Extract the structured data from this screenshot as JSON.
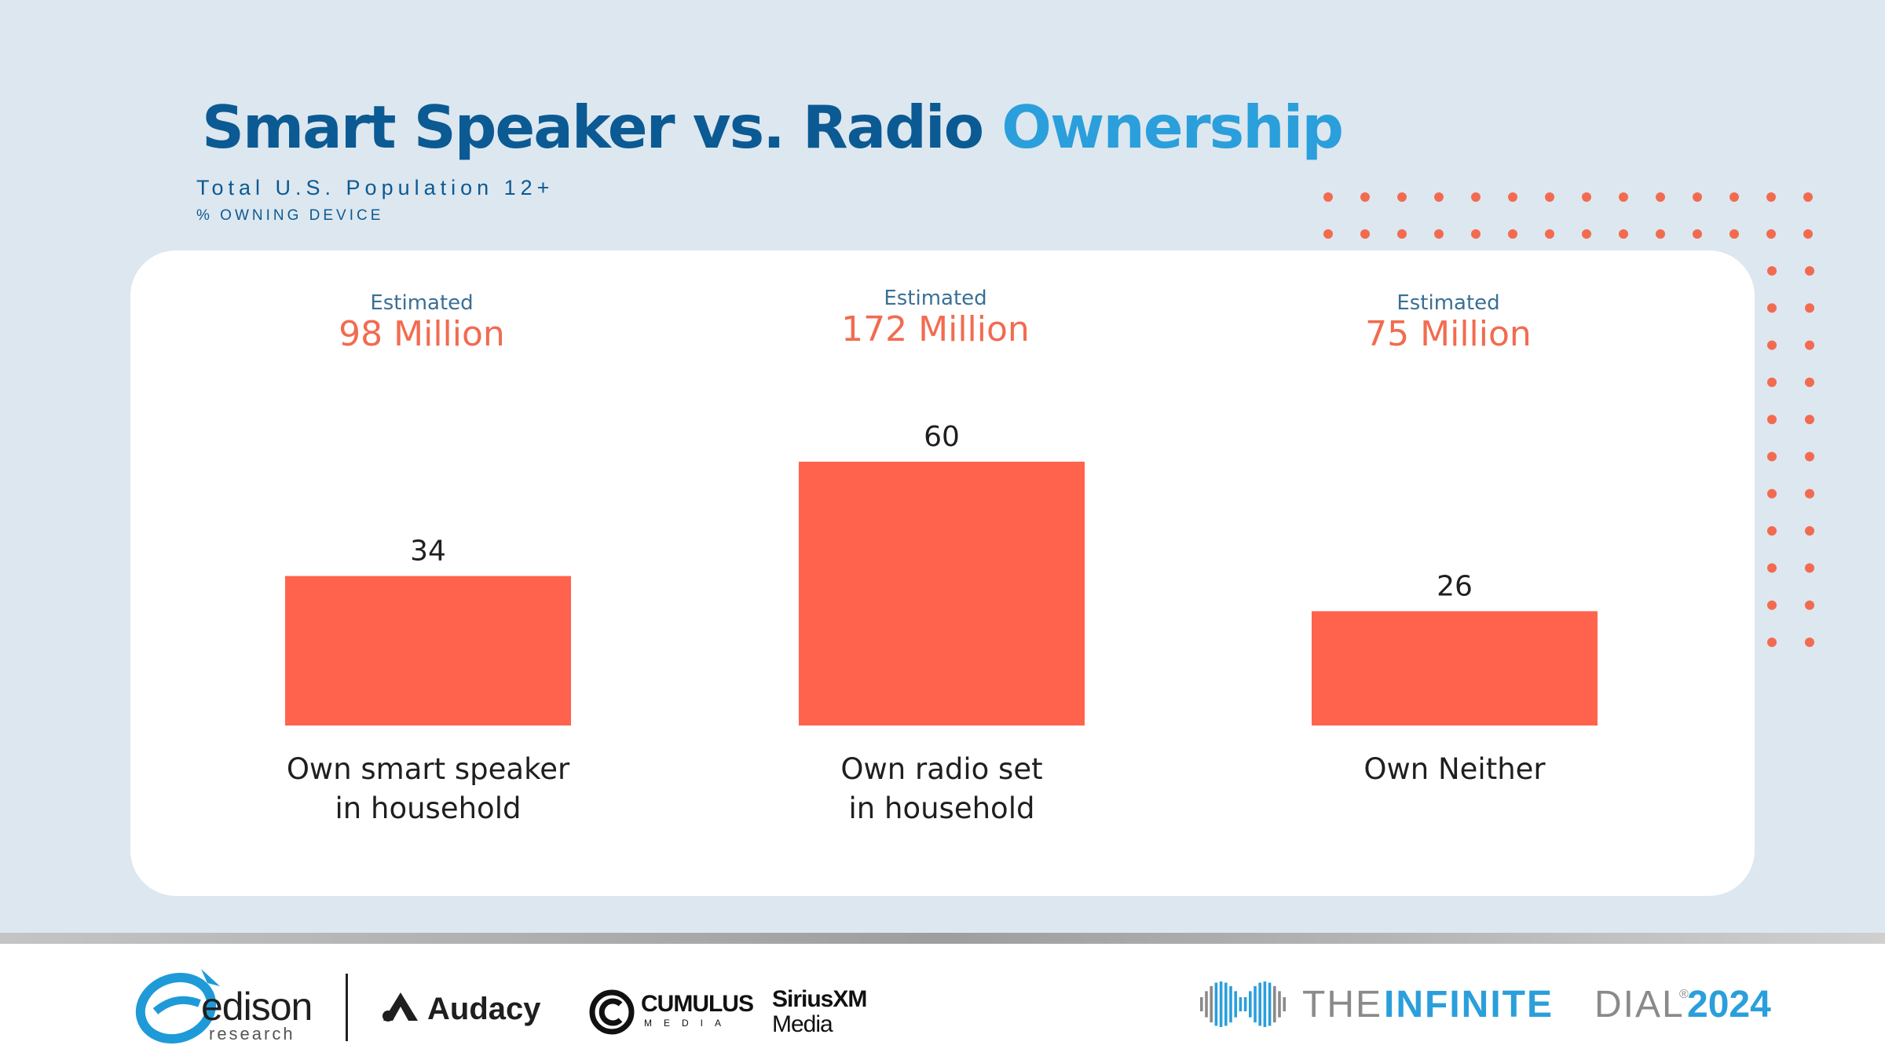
{
  "title_main": "Smart Speaker vs. Radio",
  "title_accent": "Ownership",
  "subtitle": "Total U.S. Population 12+",
  "note": "% OWNING DEVICE",
  "colors": {
    "bar": "#ff634d",
    "estimate": "#f26b50",
    "label_blue": "#3a6f95",
    "title_blue": "#0b5a93",
    "accent_blue": "#2a9fdb",
    "dots": "#f26b50"
  },
  "chart_data": {
    "type": "bar",
    "categories": [
      "Own smart speaker in household",
      "Own radio set in household",
      "Own Neither"
    ],
    "category_lines": [
      [
        "Own smart speaker",
        "in household"
      ],
      [
        "Own radio set",
        "in household"
      ],
      [
        "Own Neither"
      ]
    ],
    "values": [
      34,
      60,
      26
    ],
    "estimate_prefix": "Estimated",
    "estimates": [
      "98 Million",
      "172 Million",
      "75 Million"
    ],
    "ylim": [
      0,
      100
    ],
    "title": "Smart Speaker vs. Radio Ownership",
    "xlabel": "",
    "ylabel": ""
  },
  "footer": {
    "edison": "edison",
    "edison_sub": "research",
    "audacy": "Audacy",
    "cumulus": "CUMULUS",
    "cumulus_sub": "MEDIA",
    "siriusxm": "SiriusXM",
    "siriusxm_sub": "Media",
    "dial_the": "THE",
    "dial_infinite": "INFINITE",
    "dial_dial": "DIAL",
    "dial_reg": "®",
    "dial_year": "2024"
  }
}
